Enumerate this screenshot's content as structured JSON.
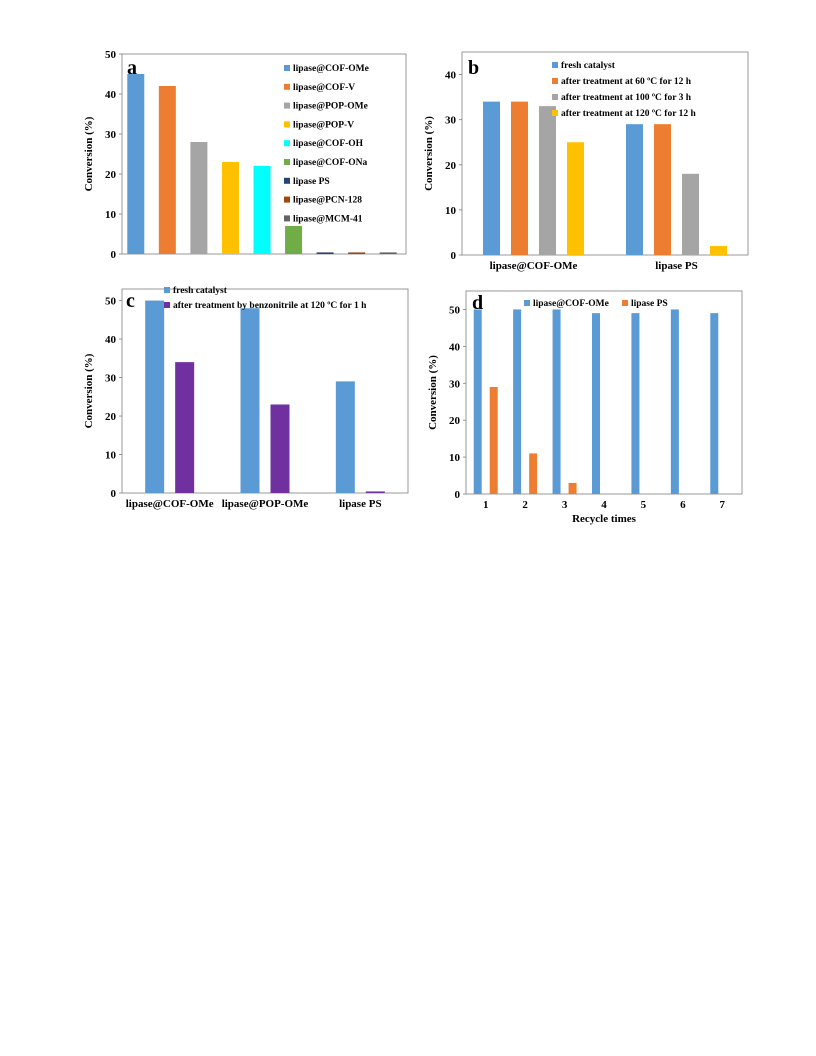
{
  "colors": {
    "blue": "#5B9BD5",
    "orange": "#ED7D31",
    "gray": "#A5A5A5",
    "gold": "#FFC000",
    "cyan": "#00FFFF",
    "green": "#70AD47",
    "navy": "#264478",
    "brown": "#9E480E",
    "darkgray": "#636363",
    "purple": "#7030A0"
  },
  "chart_data": [
    {
      "id": "a",
      "type": "bar",
      "panel_label": "a",
      "ylabel": "Conversion (%)",
      "xlabel": "",
      "ylim": [
        0,
        50
      ],
      "yticks": [
        0,
        10,
        20,
        30,
        40,
        50
      ],
      "legend_position": "top-right",
      "grid": false,
      "series": [
        {
          "name": "lipase@COF-OMe",
          "color": "blue",
          "values": [
            45
          ]
        },
        {
          "name": "lipase@COF-V",
          "color": "orange",
          "values": [
            42
          ]
        },
        {
          "name": "lipase@POP-OMe",
          "color": "gray",
          "values": [
            28
          ]
        },
        {
          "name": "lipase@POP-V",
          "color": "gold",
          "values": [
            23
          ]
        },
        {
          "name": "lipase@COF-OH",
          "color": "cyan",
          "values": [
            22
          ]
        },
        {
          "name": "lipase@COF-ONa",
          "color": "green",
          "values": [
            7
          ]
        },
        {
          "name": "lipase PS",
          "color": "navy",
          "values": [
            0.4
          ]
        },
        {
          "name": "lipase@PCN-128",
          "color": "brown",
          "values": [
            0.4
          ]
        },
        {
          "name": "lipase@MCM-41",
          "color": "darkgray",
          "values": [
            0.4
          ]
        }
      ],
      "categories": [
        ""
      ]
    },
    {
      "id": "b",
      "type": "bar",
      "panel_label": "b",
      "ylabel": "Conversion (%)",
      "xlabel": "",
      "ylim": [
        0,
        45
      ],
      "yticks": [
        0,
        10,
        20,
        30,
        40
      ],
      "legend_position": "top",
      "grid": false,
      "categories": [
        "lipase@COF-OMe",
        "lipase PS"
      ],
      "series": [
        {
          "name": "fresh catalyst",
          "color": "blue",
          "values": [
            34,
            29
          ]
        },
        {
          "name": "after treatment at 60 ºC for 12 h",
          "color": "orange",
          "values": [
            34,
            29
          ]
        },
        {
          "name": "after treatment at 100 ºC for 3 h",
          "color": "gray",
          "values": [
            33,
            18
          ]
        },
        {
          "name": "after treatment at 120 ºC for 12 h",
          "color": "gold",
          "values": [
            25,
            2
          ]
        }
      ]
    },
    {
      "id": "c",
      "type": "bar",
      "panel_label": "c",
      "ylabel": "Conversion (%)",
      "xlabel": "",
      "ylim": [
        0,
        53
      ],
      "yticks": [
        0,
        10,
        20,
        30,
        40,
        50
      ],
      "legend_position": "top",
      "grid": false,
      "categories": [
        "lipase@COF-OMe",
        "lipase@POP-OMe",
        "lipase PS"
      ],
      "series": [
        {
          "name": "fresh catalyst",
          "color": "blue",
          "values": [
            50,
            48,
            29
          ]
        },
        {
          "name": "after treatment by benzonitrile at 120 ºC for 1 h",
          "color": "purple",
          "values": [
            34,
            23,
            0.4
          ]
        }
      ]
    },
    {
      "id": "d",
      "type": "bar",
      "panel_label": "d",
      "ylabel": "Conversion (%)",
      "xlabel": "Recycle times",
      "ylim": [
        0,
        55
      ],
      "yticks": [
        0,
        10,
        20,
        30,
        40,
        50
      ],
      "legend_position": "top",
      "grid": false,
      "categories": [
        "1",
        "2",
        "3",
        "4",
        "5",
        "6",
        "7"
      ],
      "series": [
        {
          "name": "lipase@COF-OMe",
          "color": "blue",
          "values": [
            50,
            50,
            50,
            49,
            49,
            50,
            49
          ]
        },
        {
          "name": "lipase PS",
          "color": "orange",
          "values": [
            29,
            11,
            3,
            0,
            0,
            0,
            0
          ]
        }
      ]
    }
  ]
}
